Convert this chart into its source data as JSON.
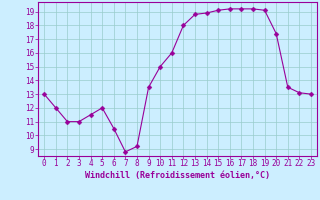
{
  "x": [
    0,
    1,
    2,
    3,
    4,
    5,
    6,
    7,
    8,
    9,
    10,
    11,
    12,
    13,
    14,
    15,
    16,
    17,
    18,
    19,
    20,
    21,
    22,
    23
  ],
  "y": [
    13,
    12,
    11,
    11,
    11.5,
    12,
    10.5,
    8.8,
    9.2,
    13.5,
    15,
    16,
    18,
    18.8,
    18.9,
    19.1,
    19.2,
    19.2,
    19.2,
    19.1,
    17.4,
    13.5,
    13.1,
    13
  ],
  "line_color": "#990099",
  "marker": "D",
  "markersize": 2.5,
  "linewidth": 0.8,
  "bg_color": "#cceeff",
  "grid_color": "#99cccc",
  "xlabel": "Windchill (Refroidissement éolien,°C)",
  "xlabel_color": "#990099",
  "xlabel_fontsize": 6,
  "xtick_labels": [
    "0",
    "1",
    "2",
    "3",
    "4",
    "5",
    "6",
    "7",
    "8",
    "9",
    "10",
    "11",
    "12",
    "13",
    "14",
    "15",
    "16",
    "17",
    "18",
    "19",
    "20",
    "21",
    "22",
    "23"
  ],
  "ytick_labels": [
    "9",
    "10",
    "11",
    "12",
    "13",
    "14",
    "15",
    "16",
    "17",
    "18",
    "19"
  ],
  "ylim": [
    8.5,
    19.7
  ],
  "xlim": [
    -0.5,
    23.5
  ],
  "tick_color": "#990099",
  "tick_fontsize": 5.5,
  "spine_color": "#990099"
}
